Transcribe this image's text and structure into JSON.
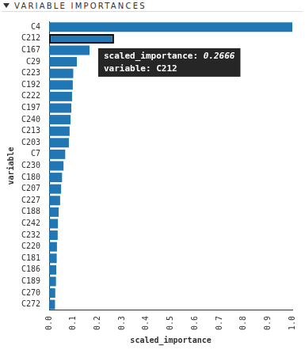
{
  "chart_data": {
    "type": "bar",
    "orientation": "horizontal",
    "title": "VARIABLE IMPORTANCES",
    "x_label": "scaled_importance",
    "y_label": "variable",
    "categories": [
      "C4",
      "C212",
      "C167",
      "C29",
      "C223",
      "C192",
      "C222",
      "C197",
      "C240",
      "C213",
      "C203",
      "C7",
      "C230",
      "C180",
      "C207",
      "C227",
      "C188",
      "C242",
      "C232",
      "C220",
      "C181",
      "C186",
      "C189",
      "C270",
      "C272"
    ],
    "values": [
      1.0,
      0.2666,
      0.166,
      0.114,
      0.099,
      0.097,
      0.094,
      0.091,
      0.088,
      0.084,
      0.081,
      0.066,
      0.059,
      0.053,
      0.049,
      0.045,
      0.039,
      0.036,
      0.035,
      0.032,
      0.031,
      0.029,
      0.028,
      0.025,
      0.024
    ],
    "color": "#2077b4",
    "xlim": [
      0,
      1
    ],
    "xticks": [
      {
        "value": 0,
        "label": "0.0"
      },
      0.1,
      0.2,
      0.3,
      0.4,
      0.5,
      0.6,
      0.7,
      0.8,
      0.9,
      {
        "value": 1,
        "label": "1.0"
      }
    ],
    "grid": false,
    "annotations": [
      {
        "x": 0.2666,
        "y": "C212",
        "text": [
          "scaled_importance: 0.2666",
          "variable: C212"
        ]
      }
    ]
  }
}
